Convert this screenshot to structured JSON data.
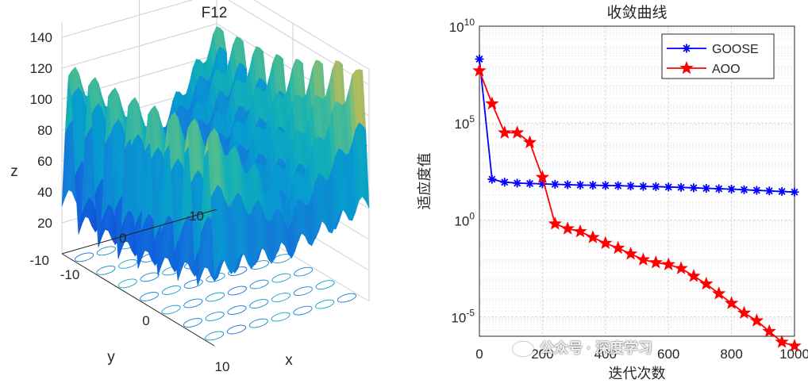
{
  "chart_data": [
    {
      "type": "surface3d",
      "title": "F12",
      "xlabel": "x",
      "ylabel": "y",
      "zlabel": "z",
      "x_ticks": [
        "-10",
        "0",
        "10"
      ],
      "y_ticks": [
        "10",
        "0",
        "-10"
      ],
      "z_ticks": [
        "20",
        "40",
        "60",
        "80",
        "100",
        "120",
        "140"
      ],
      "xlim": [
        -10,
        10
      ],
      "ylim": [
        -10,
        10
      ],
      "zlim": [
        0,
        150
      ],
      "colormap": "parula",
      "contour_base": true
    },
    {
      "type": "line",
      "title": "收敛曲线",
      "xlabel": "迭代次数",
      "ylabel": "适应度值",
      "yscale": "log",
      "xlim": [
        0,
        1000
      ],
      "ylim_exponents": [
        -6,
        10
      ],
      "x_ticks": [
        "0",
        "200",
        "400",
        "600",
        "800",
        "1000"
      ],
      "y_ticks": [
        {
          "base": "10",
          "exp": "10",
          "value": 10
        },
        {
          "base": "10",
          "exp": "5",
          "value": 5
        },
        {
          "base": "10",
          "exp": "0",
          "value": 0
        },
        {
          "base": "10",
          "exp": "-5",
          "value": -5
        }
      ],
      "legend_position": "top-right",
      "series": [
        {
          "name": "GOOSE",
          "color": "#0000ff",
          "marker": "asterisk",
          "x": [
            0,
            40,
            80,
            120,
            160,
            200,
            240,
            280,
            320,
            360,
            400,
            440,
            480,
            520,
            560,
            600,
            640,
            680,
            720,
            760,
            800,
            840,
            880,
            920,
            960,
            1000
          ],
          "log10_y": [
            8.3,
            2.1,
            1.95,
            1.9,
            1.88,
            1.86,
            1.84,
            1.82,
            1.8,
            1.79,
            1.78,
            1.77,
            1.75,
            1.73,
            1.72,
            1.7,
            1.68,
            1.66,
            1.63,
            1.61,
            1.59,
            1.56,
            1.53,
            1.5,
            1.47,
            1.44
          ]
        },
        {
          "name": "AOO",
          "color": "#ff0000",
          "marker": "star",
          "x": [
            0,
            40,
            80,
            120,
            160,
            200,
            240,
            280,
            320,
            360,
            400,
            440,
            480,
            520,
            560,
            600,
            640,
            680,
            720,
            760,
            800,
            840,
            880,
            920,
            960,
            1000
          ],
          "log10_y": [
            7.7,
            6.0,
            4.5,
            4.5,
            4.0,
            2.2,
            -0.2,
            -0.45,
            -0.6,
            -0.9,
            -1.2,
            -1.45,
            -1.75,
            -2.05,
            -2.2,
            -2.3,
            -2.5,
            -2.9,
            -3.3,
            -3.8,
            -4.3,
            -4.8,
            -5.2,
            -5.75,
            -6.3,
            -6.5
          ]
        }
      ]
    }
  ],
  "watermark": {
    "icon": "wechat-icon",
    "text": "公众号 · 深度学习"
  }
}
